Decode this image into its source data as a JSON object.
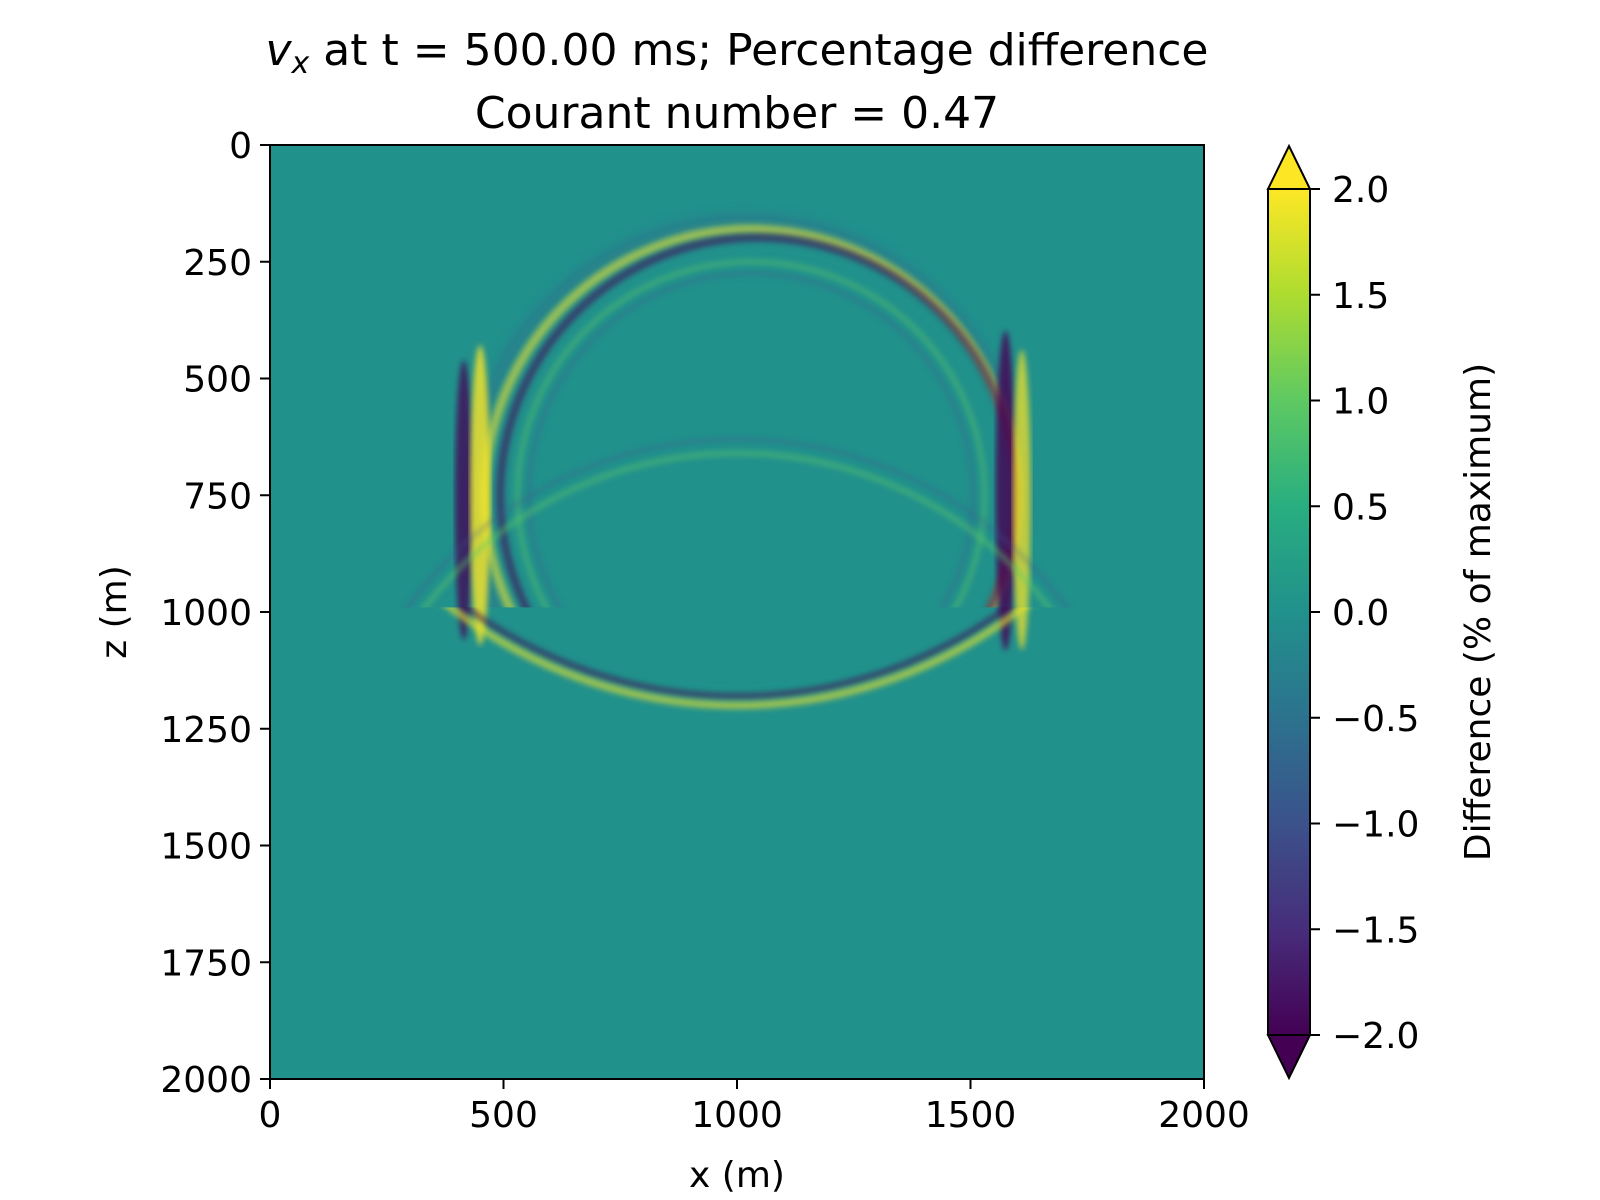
{
  "chart_data": {
    "type": "heatmap",
    "title": {
      "variable_base": "v",
      "variable_sub": "x",
      "line1_rest": " at t = 500.00 ms; Percentage difference",
      "line2": "Courant number = 0.47"
    },
    "xlabel": "x (m)",
    "ylabel": "z (m)",
    "xlim": [
      0,
      2000
    ],
    "ylim": [
      2000,
      0
    ],
    "x_ticks": [
      "0",
      "500",
      "1000",
      "1500",
      "2000"
    ],
    "y_ticks": [
      "0",
      "250",
      "500",
      "750",
      "1000",
      "1250",
      "1500",
      "1750",
      "2000"
    ],
    "colorbar": {
      "label": "Difference (% of maximum)",
      "range": [
        -2.0,
        2.0
      ],
      "ticks": [
        "2.0",
        "1.5",
        "1.0",
        "0.5",
        "0.0",
        "−0.5",
        "−1.0",
        "−1.5",
        "−2.0"
      ],
      "extend": "both",
      "colormap": "viridis"
    },
    "background_value": 0.0,
    "features": [
      {
        "kind": "circular-wavefront",
        "center_x": 1030,
        "center_z": 750,
        "radius": 570,
        "amplitude": 2.0
      },
      {
        "kind": "circular-wavefront",
        "center_x": 1030,
        "center_z": 750,
        "radius": 500,
        "amplitude": 0.6
      },
      {
        "kind": "reflected-arc",
        "center_x": 1000,
        "center_z": 1500,
        "radius": 840,
        "amplitude": 0.5
      },
      {
        "kind": "lower-arc",
        "center_x": 1000,
        "center_z": 200,
        "radius": 1000,
        "amplitude": 1.6
      }
    ],
    "grid": false
  }
}
